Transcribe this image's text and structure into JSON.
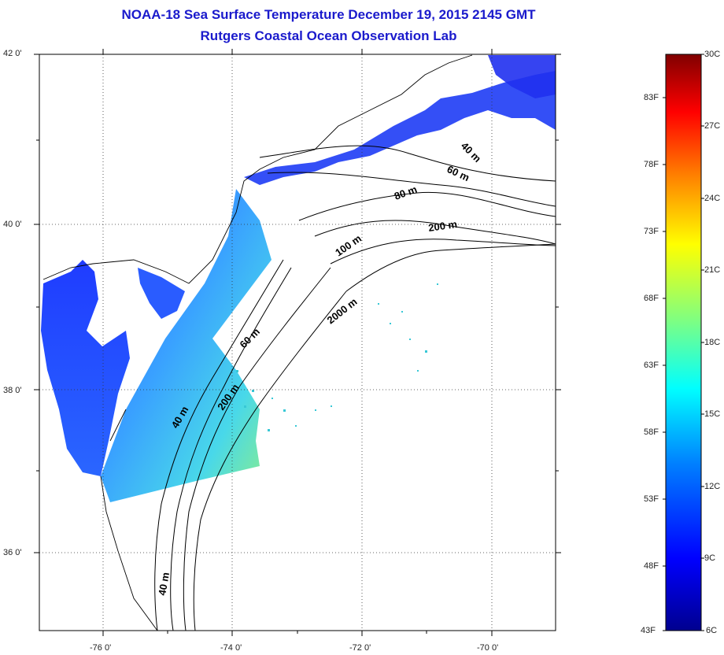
{
  "title": {
    "line1": "NOAA-18 Sea Surface Temperature December 19, 2015 2145 GMT",
    "line2": "Rutgers Coastal Ocean Observation Lab"
  },
  "map": {
    "lat_labels": [
      "42 0'",
      "40 0'",
      "38 0'",
      "36 0'"
    ],
    "lon_labels": [
      "-76 0'",
      "-74 0'",
      "-72 0'",
      "-70 0'"
    ],
    "lat_range": [
      35,
      42
    ],
    "lon_range": [
      -77,
      -69
    ],
    "grid": "dotted",
    "contour_labels": [
      "40 m",
      "60 m",
      "80 m",
      "100 m",
      "200 m",
      "2000 m",
      "60 m",
      "200 m",
      "40 m",
      "40 m"
    ]
  },
  "colorbar": {
    "celsius_labels": [
      "30C",
      "27C",
      "24C",
      "21C",
      "18C",
      "15C",
      "12C",
      "9C",
      "6C"
    ],
    "fahrenheit_labels": [
      "83F",
      "78F",
      "73F",
      "68F",
      "63F",
      "58F",
      "53F",
      "48F",
      "43F"
    ],
    "range_c": [
      6,
      30
    ],
    "colors": [
      "#00008f",
      "#0000ff",
      "#0080ff",
      "#00ffff",
      "#80ff80",
      "#ffff00",
      "#ff8000",
      "#ff0000",
      "#800000"
    ]
  }
}
